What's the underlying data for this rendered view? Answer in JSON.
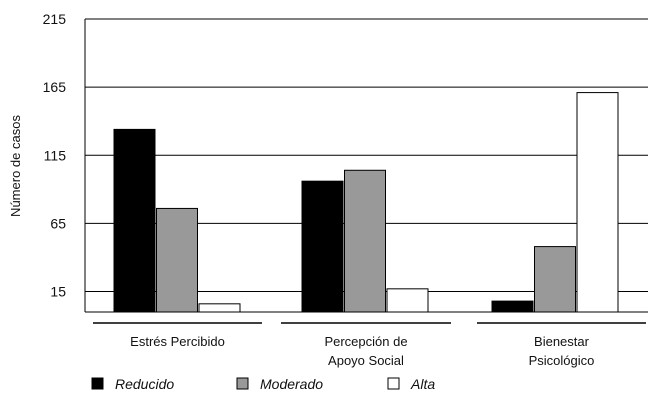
{
  "chart_data": {
    "type": "bar",
    "title": "",
    "xlabel": "",
    "ylabel": "Número de casos",
    "ylim": [
      0,
      215
    ],
    "yticks": [
      15,
      65,
      115,
      165,
      215
    ],
    "grid": true,
    "legend_position": "bottom",
    "categories": [
      [
        "Estrés Percibido"
      ],
      [
        "Percepción de",
        "Apoyo Social"
      ],
      [
        "Bienestar",
        "Psicológico"
      ]
    ],
    "series": [
      {
        "name": "Reducido",
        "color": "#000000",
        "values": [
          134,
          96,
          8
        ]
      },
      {
        "name": "Moderado",
        "color": "#999999",
        "values": [
          76,
          104,
          48
        ]
      },
      {
        "name": "Alta",
        "color": "#ffffff",
        "values": [
          6,
          17,
          161
        ]
      }
    ]
  }
}
